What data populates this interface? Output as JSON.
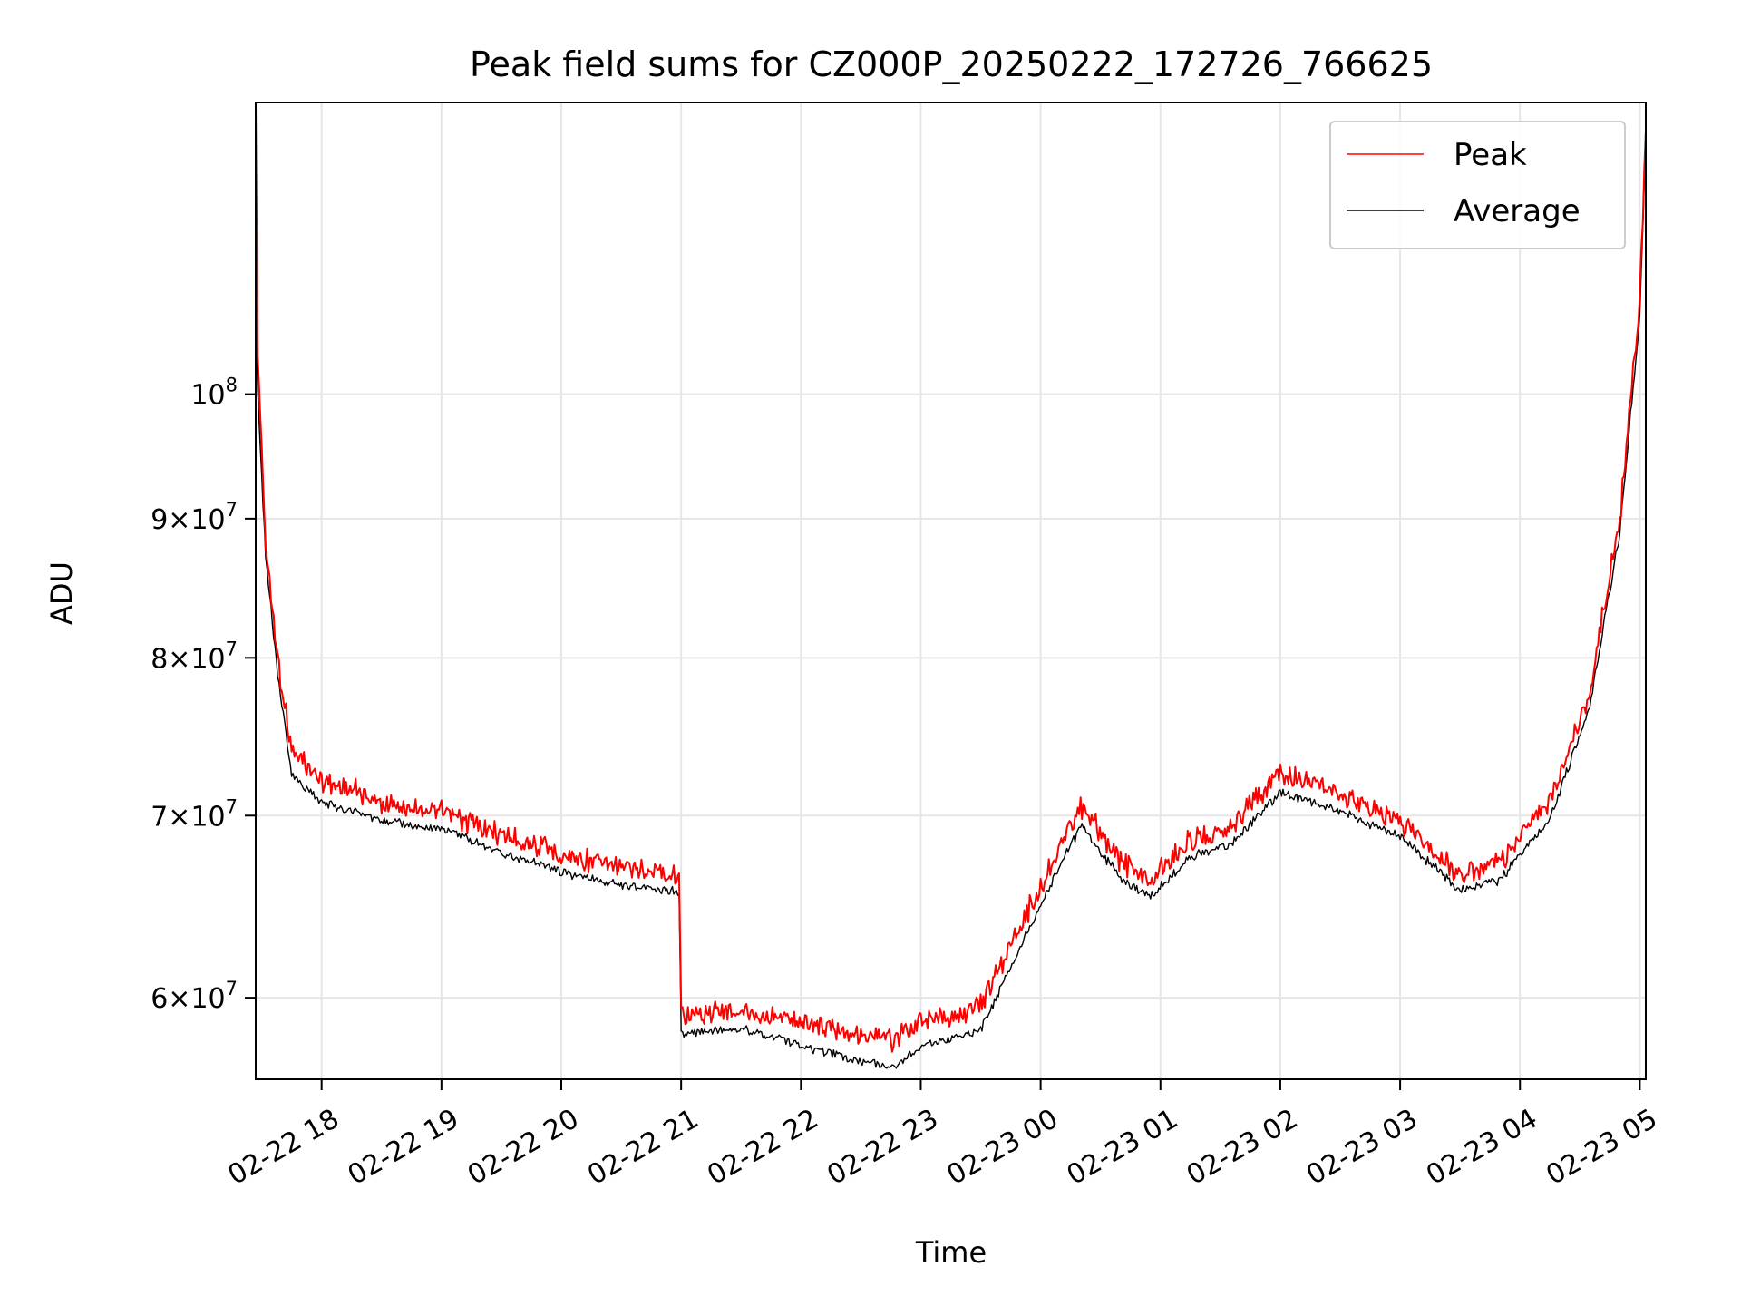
{
  "chart_data": {
    "type": "line",
    "title": "Peak field sums for CZ000P_20250222_172726_766625",
    "xlabel": "Time",
    "ylabel": "ADU",
    "yscale": "log",
    "grid": true,
    "legend_placement": "top-right",
    "xlim": [
      "2025-02-22 17:27",
      "2025-02-23 05:03"
    ],
    "ylim": [
      56000000,
      128000000
    ],
    "x_ticks": [
      {
        "time": "2025-02-22 18:00",
        "label": "02-22 18"
      },
      {
        "time": "2025-02-22 19:00",
        "label": "02-22 19"
      },
      {
        "time": "2025-02-22 20:00",
        "label": "02-22 20"
      },
      {
        "time": "2025-02-22 21:00",
        "label": "02-22 21"
      },
      {
        "time": "2025-02-22 22:00",
        "label": "02-22 22"
      },
      {
        "time": "2025-02-22 23:00",
        "label": "02-22 23"
      },
      {
        "time": "2025-02-23 00:00",
        "label": "02-23 00"
      },
      {
        "time": "2025-02-23 01:00",
        "label": "02-23 01"
      },
      {
        "time": "2025-02-23 02:00",
        "label": "02-23 02"
      },
      {
        "time": "2025-02-23 03:00",
        "label": "02-23 03"
      },
      {
        "time": "2025-02-23 04:00",
        "label": "02-23 04"
      },
      {
        "time": "2025-02-23 05:00",
        "label": "02-23 05"
      }
    ],
    "y_ticks": [
      {
        "value": 60000000,
        "mantissa": "6",
        "exponent": "7"
      },
      {
        "value": 70000000,
        "mantissa": "7",
        "exponent": "7"
      },
      {
        "value": 80000000,
        "mantissa": "8",
        "exponent": "7"
      },
      {
        "value": 90000000,
        "mantissa": "9",
        "exponent": "7"
      },
      {
        "value": 100000000,
        "mantissa": "",
        "exponent": "8"
      }
    ],
    "series": [
      {
        "name": "Peak",
        "color": "#ff0000",
        "points": [
          [
            "2025-02-22 17:27",
            127000000
          ],
          [
            "2025-02-22 17:28",
            104000000
          ],
          [
            "2025-02-22 17:32",
            88000000
          ],
          [
            "2025-02-22 17:38",
            80000000
          ],
          [
            "2025-02-22 17:45",
            74000000
          ],
          [
            "2025-02-22 18:00",
            72200000
          ],
          [
            "2025-02-22 18:30",
            70800000
          ],
          [
            "2025-02-22 19:00",
            70200000
          ],
          [
            "2025-02-22 19:30",
            68900000
          ],
          [
            "2025-02-22 20:00",
            67800000
          ],
          [
            "2025-02-22 20:30",
            67000000
          ],
          [
            "2025-02-22 20:59",
            66500000
          ],
          [
            "2025-02-22 21:00",
            59200000
          ],
          [
            "2025-02-22 21:30",
            59300000
          ],
          [
            "2025-02-22 22:00",
            58800000
          ],
          [
            "2025-02-22 22:30",
            58200000
          ],
          [
            "2025-02-22 22:45",
            57900000
          ],
          [
            "2025-02-22 23:00",
            58700000
          ],
          [
            "2025-02-22 23:30",
            59600000
          ],
          [
            "2025-02-22 23:45",
            62800000
          ],
          [
            "2025-02-23 00:00",
            65900000
          ],
          [
            "2025-02-23 00:20",
            70600000
          ],
          [
            "2025-02-23 00:40",
            67400000
          ],
          [
            "2025-02-23 00:55",
            66300000
          ],
          [
            "2025-02-23 01:15",
            68600000
          ],
          [
            "2025-02-23 01:35",
            69300000
          ],
          [
            "2025-02-23 02:00",
            72600000
          ],
          [
            "2025-02-23 02:30",
            71200000
          ],
          [
            "2025-02-23 03:00",
            69700000
          ],
          [
            "2025-02-23 03:20",
            67600000
          ],
          [
            "2025-02-23 03:30",
            66600000
          ],
          [
            "2025-02-23 03:50",
            67300000
          ],
          [
            "2025-02-23 04:15",
            70800000
          ],
          [
            "2025-02-23 04:35",
            77800000
          ],
          [
            "2025-02-23 04:50",
            90000000
          ],
          [
            "2025-02-23 05:00",
            108000000
          ],
          [
            "2025-02-23 05:03",
            125000000
          ]
        ]
      },
      {
        "name": "Average",
        "color": "#000000",
        "points": [
          [
            "2025-02-22 17:27",
            108000000
          ],
          [
            "2025-02-22 17:28",
            100000000
          ],
          [
            "2025-02-22 17:32",
            87000000
          ],
          [
            "2025-02-22 17:38",
            79000000
          ],
          [
            "2025-02-22 17:45",
            72500000
          ],
          [
            "2025-02-22 18:00",
            70800000
          ],
          [
            "2025-02-22 18:30",
            69700000
          ],
          [
            "2025-02-22 19:00",
            69200000
          ],
          [
            "2025-02-22 19:30",
            67900000
          ],
          [
            "2025-02-22 20:00",
            66700000
          ],
          [
            "2025-02-22 20:30",
            66000000
          ],
          [
            "2025-02-22 20:59",
            65600000
          ],
          [
            "2025-02-22 21:00",
            58200000
          ],
          [
            "2025-02-22 21:30",
            58500000
          ],
          [
            "2025-02-22 22:00",
            57600000
          ],
          [
            "2025-02-22 22:30",
            56900000
          ],
          [
            "2025-02-22 22:45",
            56500000
          ],
          [
            "2025-02-22 23:00",
            57500000
          ],
          [
            "2025-02-22 23:30",
            58400000
          ],
          [
            "2025-02-22 23:45",
            61500000
          ],
          [
            "2025-02-23 00:00",
            64900000
          ],
          [
            "2025-02-23 00:20",
            69400000
          ],
          [
            "2025-02-23 00:40",
            66400000
          ],
          [
            "2025-02-23 00:55",
            65300000
          ],
          [
            "2025-02-23 01:15",
            67600000
          ],
          [
            "2025-02-23 01:35",
            68300000
          ],
          [
            "2025-02-23 02:00",
            71400000
          ],
          [
            "2025-02-23 02:30",
            70200000
          ],
          [
            "2025-02-23 03:00",
            68800000
          ],
          [
            "2025-02-23 03:20",
            66700000
          ],
          [
            "2025-02-23 03:30",
            65700000
          ],
          [
            "2025-02-23 03:50",
            66300000
          ],
          [
            "2025-02-23 04:15",
            69800000
          ],
          [
            "2025-02-23 04:35",
            76800000
          ],
          [
            "2025-02-23 04:50",
            89000000
          ],
          [
            "2025-02-23 05:00",
            107000000
          ],
          [
            "2025-02-23 05:03",
            124000000
          ]
        ]
      }
    ]
  }
}
